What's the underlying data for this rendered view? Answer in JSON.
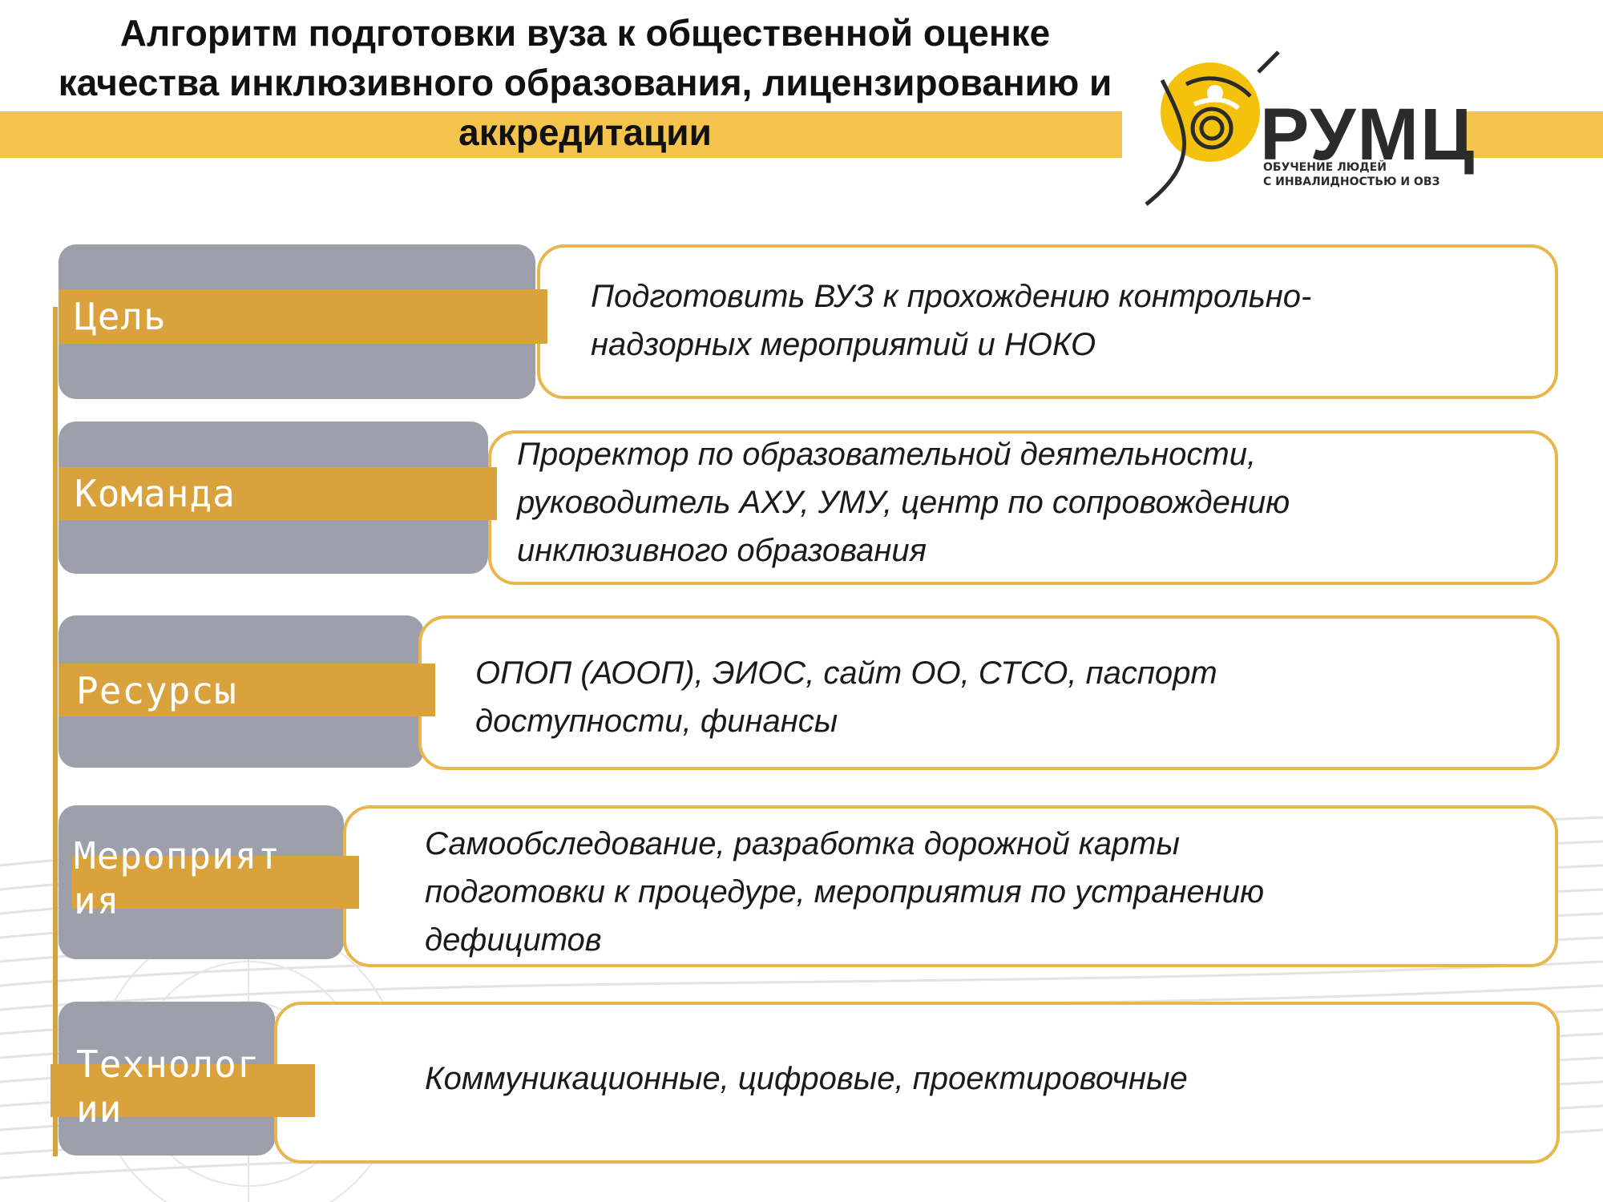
{
  "title": {
    "line1": "Алгоритм подготовки вуза к общественной оценке",
    "line2": "качества инклюзивного образования, лицензированию и",
    "line3": "аккредитации"
  },
  "logo": {
    "name": "РУМЦ",
    "subtitle_line1": "ОБУЧЕНИЕ ЛЮДЕЙ",
    "subtitle_line2": "С ИНВАЛИДНОСТЬЮ И ОВЗ"
  },
  "rows": [
    {
      "label_lines": [
        "Цель"
      ],
      "content_lines": [
        "Подготовить ВУЗ к прохождению контрольно-",
        "надзорных мероприятий и НОКО"
      ]
    },
    {
      "label_lines": [
        "Команда"
      ],
      "content_lines": [
        "Проректор по образовательной деятельности,",
        "руководитель  АХУ, УМУ, центр по сопровождению",
        "инклюзивного образования"
      ]
    },
    {
      "label_lines": [
        "Ресурсы"
      ],
      "content_lines": [
        "ОПОП (АООП), ЭИОС, сайт ОО, СТСО, паспорт",
        "доступности, финансы"
      ]
    },
    {
      "label_lines": [
        "Мероприят",
        "ия"
      ],
      "content_lines": [
        "Самообследование, разработка дорожной карты",
        "подготовки к процедуре,  мероприятия по устранению",
        "дефицитов"
      ]
    },
    {
      "label_lines": [
        "Технолог",
        "ии"
      ],
      "content_lines": [
        "Коммуникационные, цифровые, проектировочные"
      ]
    }
  ],
  "colors": {
    "accent_yellow": "#F4C44C",
    "label_gold": "#D9A23C",
    "box_border": "#E8B64A",
    "grey_tab": "#9D9FAA"
  }
}
